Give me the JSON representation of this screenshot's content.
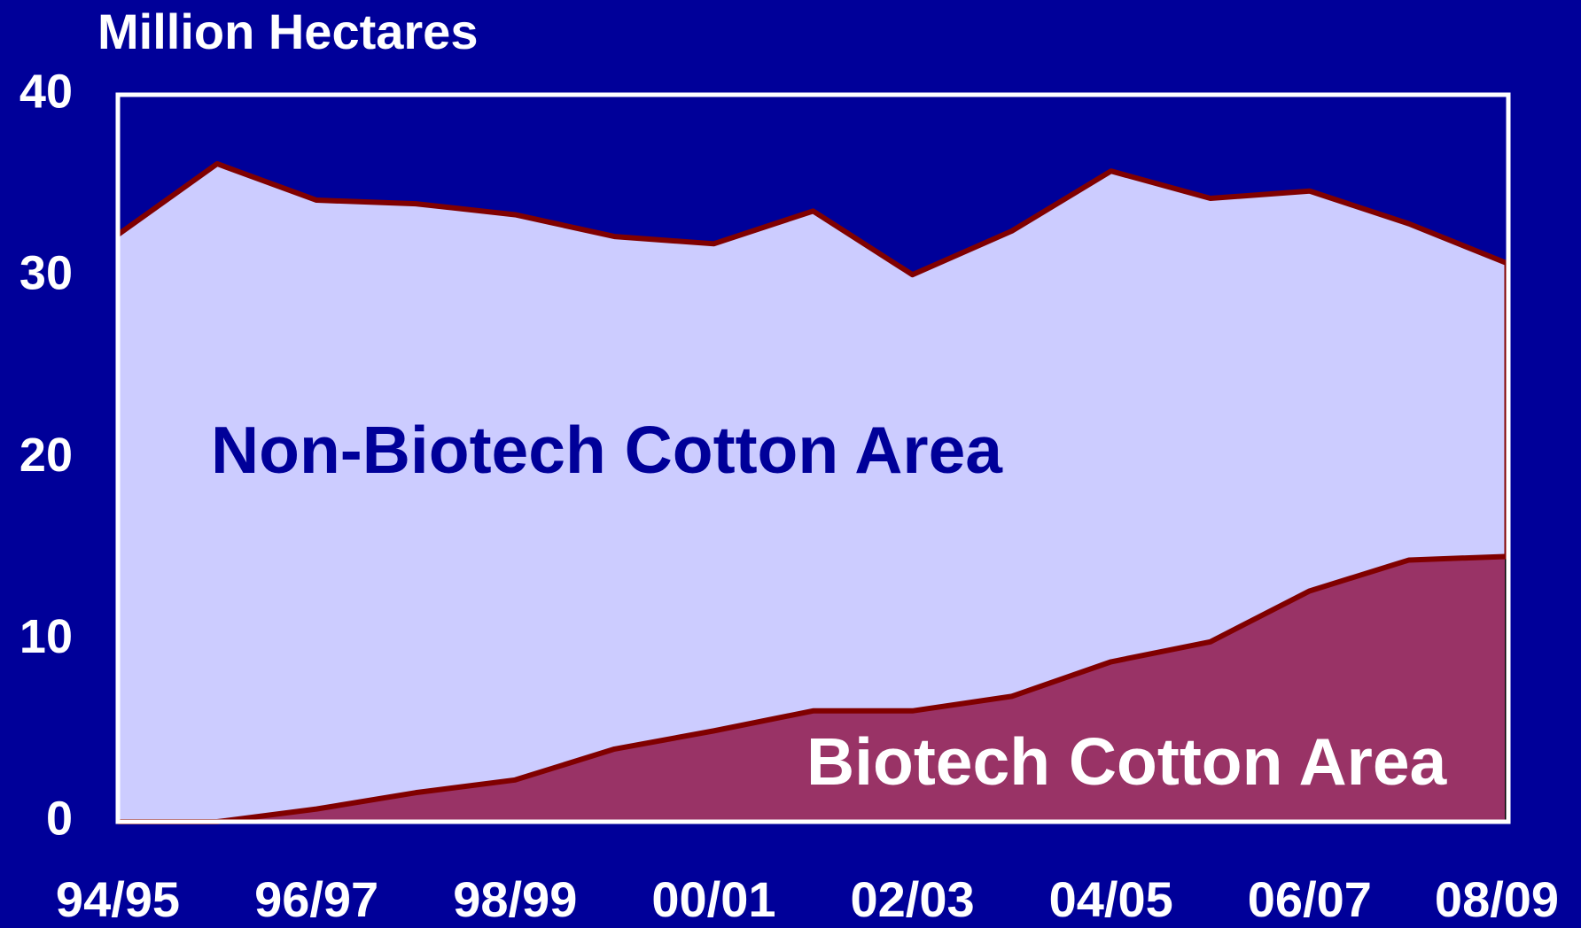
{
  "chart_data": {
    "type": "stacked-area",
    "ylabel": "Million Hectares",
    "categories": [
      "94/95",
      null,
      "96/97",
      null,
      "98/99",
      null,
      "00/01",
      null,
      "02/03",
      null,
      "04/05",
      null,
      "06/07",
      null,
      "08/09"
    ],
    "series": [
      {
        "name": "Biotech Cotton Area",
        "color": "#993366",
        "values": [
          0,
          0,
          0.7,
          1.6,
          2.3,
          4.0,
          5.0,
          6.1,
          6.1,
          6.9,
          8.8,
          9.9,
          12.7,
          14.4,
          14.6
        ]
      },
      {
        "name": "Non-Biotech Cotton Area",
        "color": "#ccccff",
        "values": [
          32.3,
          36.2,
          33.5,
          32.4,
          31.1,
          28.2,
          26.8,
          27.5,
          24.0,
          25.6,
          27.0,
          24.4,
          22.0,
          18.5,
          16.1
        ]
      }
    ],
    "line_color": "#800000",
    "ylim": [
      0,
      40
    ],
    "yticks": [
      0,
      10,
      20,
      30,
      40
    ],
    "grid": false
  }
}
